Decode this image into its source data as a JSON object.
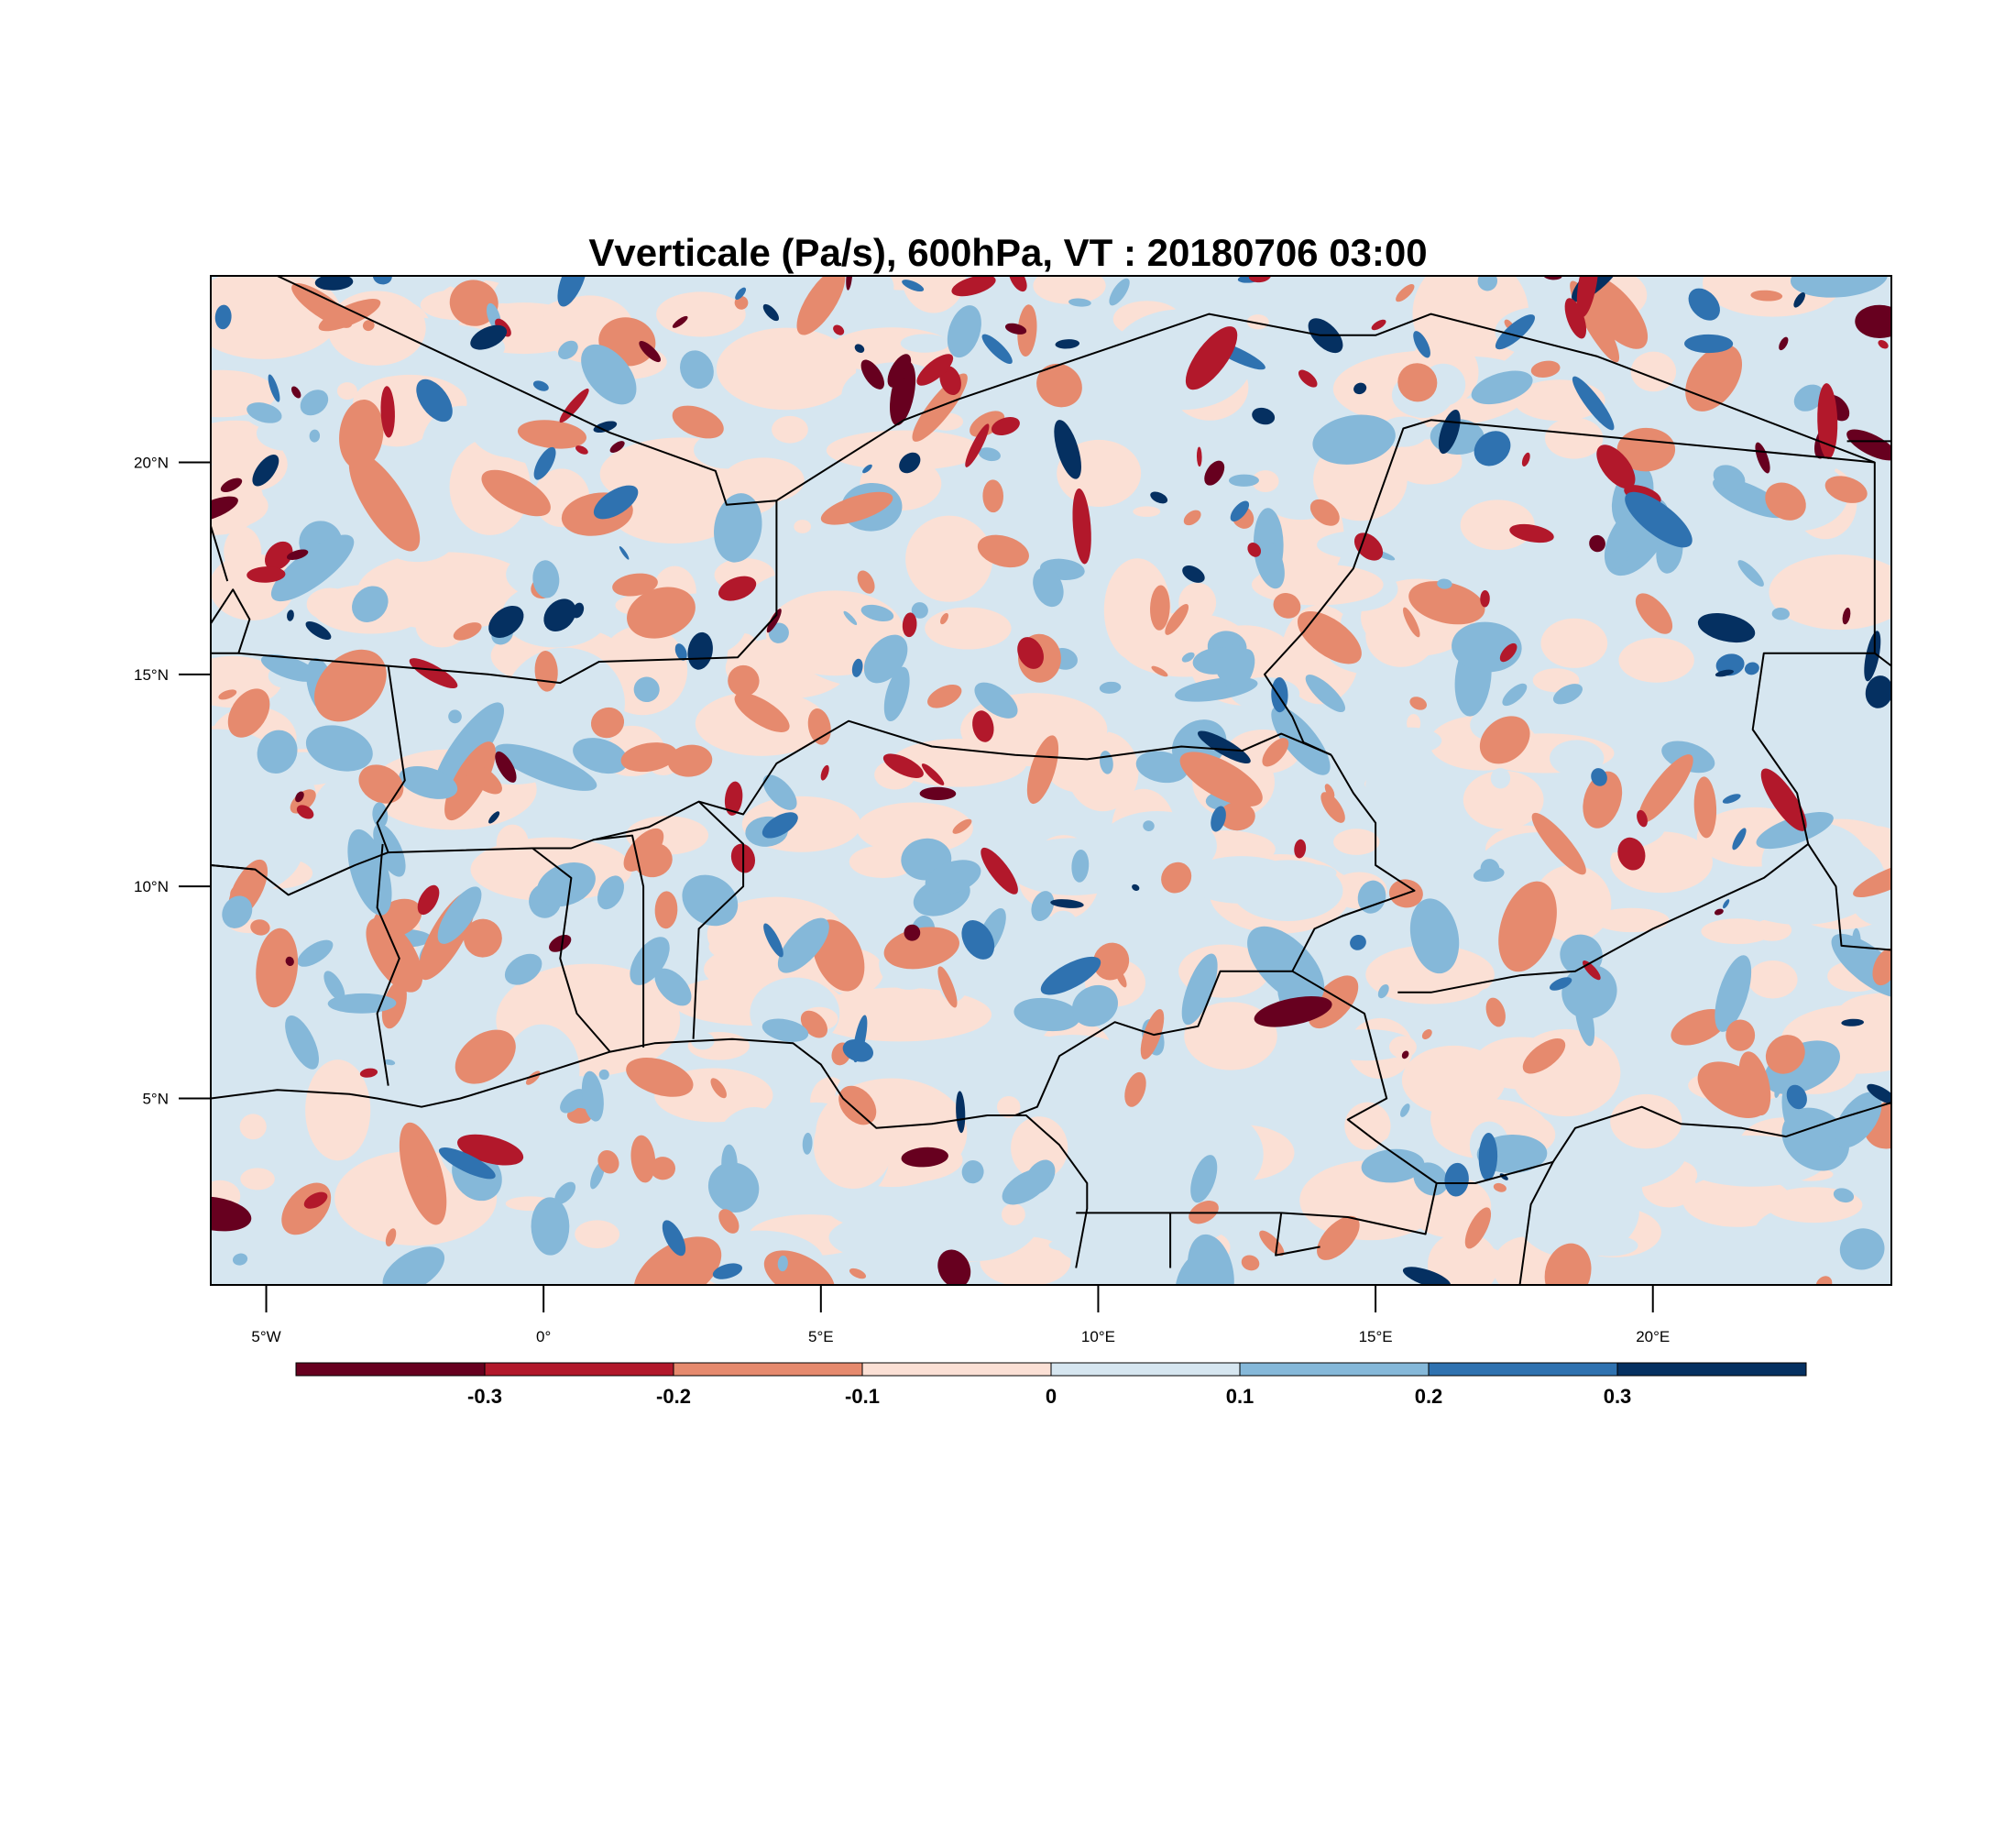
{
  "title": "Vverticale (Pa/s), 600hPa, VT : 20180706  03:00",
  "map": {
    "lon_range": [
      -6,
      24.3
    ],
    "lat_range": [
      0.6,
      24.4
    ],
    "lon_ticks": [
      {
        "value": -5,
        "label": "5°W"
      },
      {
        "value": 0,
        "label": "0°"
      },
      {
        "value": 5,
        "label": "5°E"
      },
      {
        "value": 10,
        "label": "10°E"
      },
      {
        "value": 15,
        "label": "15°E"
      },
      {
        "value": 20,
        "label": "20°E"
      }
    ],
    "lat_ticks": [
      {
        "value": 20,
        "label": "20°N"
      },
      {
        "value": 15,
        "label": "15°N"
      },
      {
        "value": 10,
        "label": "10°N"
      },
      {
        "value": 5,
        "label": "5°N"
      }
    ],
    "background_color": "#d6e6f0",
    "borders": [
      [
        [
          -6,
          10.5
        ],
        [
          -5.2,
          10.4
        ],
        [
          -4.6,
          9.8
        ],
        [
          -3.4,
          10.5
        ],
        [
          -2.8,
          10.8
        ],
        [
          -0.2,
          10.9
        ],
        [
          0.5,
          10.9
        ],
        [
          0.9,
          11.1
        ],
        [
          1.9,
          11.4
        ],
        [
          2.8,
          12.0
        ],
        [
          3.6,
          11.7
        ],
        [
          4.2,
          12.9
        ],
        [
          5.5,
          13.9
        ],
        [
          7.0,
          13.3
        ],
        [
          8.5,
          13.1
        ],
        [
          9.8,
          13.0
        ],
        [
          11.5,
          13.3
        ],
        [
          12.6,
          13.2
        ],
        [
          13.3,
          13.6
        ],
        [
          14.2,
          13.1
        ]
      ],
      [
        [
          -6,
          15.5
        ],
        [
          -5.5,
          15.5
        ],
        [
          -5.3,
          16.3
        ],
        [
          -5.6,
          17.0
        ],
        [
          -6,
          16.2
        ]
      ],
      [
        [
          -6,
          18.5
        ],
        [
          -5.7,
          17.2
        ]
      ],
      [
        [
          -5.5,
          15.5
        ],
        [
          -2.8,
          15.2
        ],
        [
          -1.0,
          15.0
        ],
        [
          0.3,
          14.8
        ],
        [
          1.0,
          15.3
        ],
        [
          3.5,
          15.4
        ],
        [
          4.2,
          16.4
        ],
        [
          4.2,
          19.1
        ],
        [
          3.3,
          19.0
        ],
        [
          3.1,
          19.8
        ],
        [
          1.2,
          20.7
        ],
        [
          -4.8,
          24.4
        ]
      ],
      [
        [
          4.2,
          19.1
        ],
        [
          6.5,
          21.0
        ],
        [
          7.5,
          21.5
        ],
        [
          12.0,
          23.5
        ],
        [
          14.0,
          23.0
        ],
        [
          15.0,
          23.0
        ],
        [
          16.0,
          23.5
        ],
        [
          19.0,
          22.5
        ],
        [
          24.0,
          20.0
        ],
        [
          24.0,
          15.5
        ],
        [
          23.5,
          15.5
        ],
        [
          22.0,
          15.5
        ],
        [
          21.8,
          13.7
        ],
        [
          22.6,
          12.2
        ],
        [
          22.8,
          11.0
        ],
        [
          22.0,
          10.2
        ],
        [
          20.0,
          9.0
        ],
        [
          18.6,
          8.0
        ],
        [
          17.6,
          7.9
        ],
        [
          16.0,
          7.5
        ],
        [
          15.4,
          7.5
        ]
      ],
      [
        [
          14.2,
          13.1
        ],
        [
          13.7,
          13.4
        ],
        [
          13.5,
          14.0
        ],
        [
          13.0,
          15.0
        ],
        [
          13.7,
          16.0
        ],
        [
          14.6,
          17.5
        ],
        [
          15.5,
          20.8
        ],
        [
          16.0,
          21.0
        ],
        [
          24.0,
          20.0
        ]
      ],
      [
        [
          14.2,
          13.1
        ],
        [
          14.6,
          12.2
        ],
        [
          15.0,
          11.5
        ],
        [
          15.0,
          10.5
        ],
        [
          15.7,
          9.9
        ],
        [
          14.4,
          9.3
        ],
        [
          13.9,
          9.0
        ],
        [
          13.5,
          8.0
        ],
        [
          14.8,
          7.0
        ],
        [
          15.2,
          5.0
        ],
        [
          14.5,
          4.5
        ],
        [
          15.0,
          4.0
        ],
        [
          16.1,
          3.0
        ],
        [
          16.8,
          3.0
        ],
        [
          18.2,
          3.5
        ],
        [
          18.6,
          4.3
        ],
        [
          19.8,
          4.8
        ],
        [
          20.5,
          4.4
        ],
        [
          21.6,
          4.3
        ],
        [
          22.4,
          4.1
        ],
        [
          23.3,
          4.5
        ],
        [
          24.3,
          4.9
        ]
      ],
      [
        [
          13.5,
          8.0
        ],
        [
          12.2,
          8.0
        ],
        [
          11.8,
          6.7
        ],
        [
          11.0,
          6.5
        ],
        [
          10.3,
          6.8
        ],
        [
          9.3,
          6.0
        ],
        [
          8.9,
          4.8
        ],
        [
          8.5,
          4.6
        ]
      ],
      [
        [
          9.6,
          2.3
        ],
        [
          11.3,
          2.3
        ],
        [
          13.3,
          2.3
        ],
        [
          14.5,
          2.2
        ],
        [
          15.9,
          1.8
        ],
        [
          16.1,
          3.0
        ]
      ],
      [
        [
          11.3,
          2.3
        ],
        [
          11.3,
          1.0
        ]
      ],
      [
        [
          13.3,
          2.3
        ],
        [
          13.2,
          1.3
        ],
        [
          14.0,
          1.5
        ]
      ],
      [
        [
          17.6,
          0.6
        ],
        [
          17.8,
          2.5
        ],
        [
          18.2,
          3.5
        ]
      ],
      [
        [
          -2.8,
          15.2
        ],
        [
          -2.5,
          12.5
        ],
        [
          -3.0,
          11.5
        ],
        [
          -2.8,
          10.8
        ]
      ],
      [
        [
          -2.9,
          11.0
        ],
        [
          -3.0,
          9.5
        ],
        [
          -2.6,
          8.3
        ],
        [
          -3.0,
          7.0
        ],
        [
          -2.8,
          5.3
        ]
      ],
      [
        [
          -0.2,
          10.9
        ],
        [
          0.5,
          10.2
        ],
        [
          0.3,
          8.3
        ],
        [
          0.6,
          7.0
        ],
        [
          1.2,
          6.1
        ]
      ],
      [
        [
          0.9,
          11.1
        ],
        [
          1.6,
          11.2
        ],
        [
          1.8,
          10.0
        ],
        [
          1.8,
          6.2
        ]
      ],
      [
        [
          2.8,
          12.0
        ],
        [
          3.6,
          11.0
        ],
        [
          3.6,
          10.0
        ],
        [
          2.8,
          9.0
        ],
        [
          2.7,
          6.4
        ]
      ],
      [
        [
          -5.2,
          10.4
        ],
        [
          -6,
          10.5
        ]
      ],
      [
        [
          24.0,
          15.5
        ],
        [
          24.3,
          15.2
        ]
      ],
      [
        [
          22.8,
          11.0
        ],
        [
          23.3,
          10.0
        ],
        [
          23.4,
          8.6
        ],
        [
          24.3,
          8.5
        ]
      ],
      [
        [
          23.5,
          20.5
        ],
        [
          24.3,
          20.5
        ]
      ]
    ],
    "coastline": [
      [
        -6,
        5.0
      ],
      [
        -4.8,
        5.2
      ],
      [
        -3.5,
        5.1
      ],
      [
        -3.0,
        5.0
      ],
      [
        -2.2,
        4.8
      ],
      [
        -1.5,
        5.0
      ],
      [
        0.0,
        5.6
      ],
      [
        1.2,
        6.1
      ],
      [
        2.0,
        6.3
      ],
      [
        3.4,
        6.4
      ],
      [
        4.5,
        6.3
      ],
      [
        5.0,
        5.8
      ],
      [
        5.4,
        5.0
      ],
      [
        6.0,
        4.3
      ],
      [
        7.0,
        4.4
      ],
      [
        8.0,
        4.6
      ],
      [
        8.7,
        4.6
      ],
      [
        9.3,
        3.9
      ],
      [
        9.8,
        3.0
      ],
      [
        9.8,
        2.4
      ],
      [
        9.6,
        1.0
      ]
    ],
    "field_hint": {
      "max_ascent_hotspots": "negative (red) regions",
      "colors_by_level": "see colorbar"
    }
  },
  "colorbar": {
    "bins": [
      {
        "color": "#67001f"
      },
      {
        "color": "#b2182b"
      },
      {
        "color": "#e68a6e"
      },
      {
        "color": "#fbe0d5"
      },
      {
        "color": "#d6e6f0"
      },
      {
        "color": "#85b8d9"
      },
      {
        "color": "#2f72b0"
      },
      {
        "color": "#053061"
      }
    ],
    "labels": [
      "-0.3",
      "-0.2",
      "-0.1",
      "0",
      "0.1",
      "0.2",
      "0.3"
    ]
  }
}
